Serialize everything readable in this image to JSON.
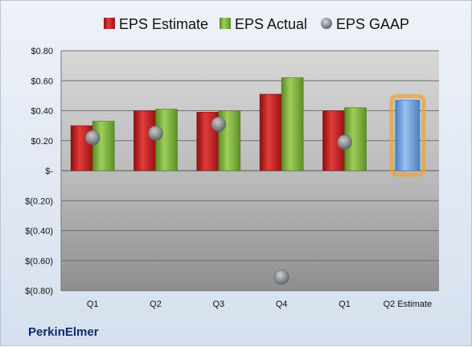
{
  "chart_data": {
    "type": "bar",
    "categories": [
      "Q1",
      "Q2",
      "Q3",
      "Q4",
      "Q1",
      "Q2 Estimate"
    ],
    "series": [
      {
        "name": "EPS Estimate",
        "values": [
          0.3,
          0.4,
          0.39,
          0.51,
          0.4,
          null
        ],
        "color": "#cc1f1f"
      },
      {
        "name": "EPS Actual",
        "values": [
          0.33,
          0.41,
          0.4,
          0.62,
          0.42,
          null
        ],
        "color": "#7faf3a"
      },
      {
        "name": "EPS GAAP",
        "values": [
          0.22,
          0.25,
          0.31,
          -0.71,
          0.19,
          null
        ],
        "color": "#9aa0a8",
        "marker": "circle"
      }
    ],
    "estimate_bar": {
      "category": "Q2 Estimate",
      "value": 0.47,
      "color": "#6b9fdc",
      "highlight": "#f0a040"
    },
    "ylim": [
      -0.8,
      0.8
    ],
    "yticks": [
      {
        "v": 0.8,
        "label": "$0.80"
      },
      {
        "v": 0.6,
        "label": "$0.60"
      },
      {
        "v": 0.4,
        "label": "$0.40"
      },
      {
        "v": 0.2,
        "label": "$0.20"
      },
      {
        "v": 0.0,
        "label": "$-"
      },
      {
        "v": -0.2,
        "label": "$(0.20)"
      },
      {
        "v": -0.4,
        "label": "$(0.40)"
      },
      {
        "v": -0.6,
        "label": "$(0.60)"
      },
      {
        "v": -0.8,
        "label": "$(0.80)"
      }
    ],
    "grid": true,
    "legend": "top",
    "company": "PerkinElmer"
  }
}
